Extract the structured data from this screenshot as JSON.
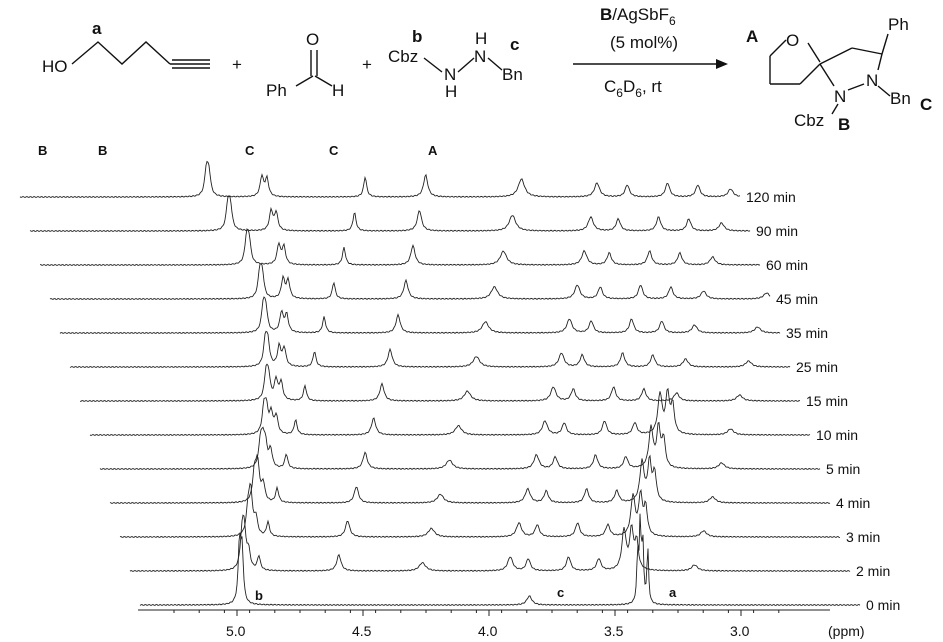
{
  "scheme": {
    "reactant1": {
      "formula_left": "HO",
      "site_label": "a"
    },
    "plus1": "+",
    "reactant2": {
      "o": "O",
      "ph": "Ph",
      "h": "H"
    },
    "plus2": "+",
    "reactant3": {
      "cbz": "Cbz",
      "n1": "N",
      "h1": "H",
      "n2": "N",
      "h2": "H",
      "bn": "Bn",
      "site_b": "b",
      "site_c": "c"
    },
    "arrow": {
      "top_line1_bold": "B",
      "top_line1_rest": "/AgSbF",
      "top_line1_sub": "6",
      "top_line2": "(5 mol%)",
      "bottom_c": "C",
      "bottom_c_sub": "6",
      "bottom_d": "D",
      "bottom_d_sub": "6",
      "bottom_rest": ", rt"
    },
    "product": {
      "o": "O",
      "ph": "Ph",
      "n1": "N",
      "n2": "N",
      "bn": "Bn",
      "cbz": "Cbz",
      "label_a": "A",
      "label_b": "B",
      "label_c": "C"
    }
  },
  "spectra": {
    "peak_letters_top": [
      "B",
      "B",
      "C",
      "C",
      "A"
    ],
    "peak_letters_bottom": [
      "b",
      "c",
      "a"
    ],
    "times": [
      "120 min",
      "90 min",
      "60 min",
      "45 min",
      "35 min",
      "25 min",
      "15 min",
      "10 min",
      "5 min",
      "4 min",
      "3 min",
      "2 min",
      "0 min"
    ],
    "axis_ticks": [
      "5.0",
      "4.5",
      "4.0",
      "3.5",
      "3.0"
    ],
    "axis_unit": "(ppm)"
  }
}
